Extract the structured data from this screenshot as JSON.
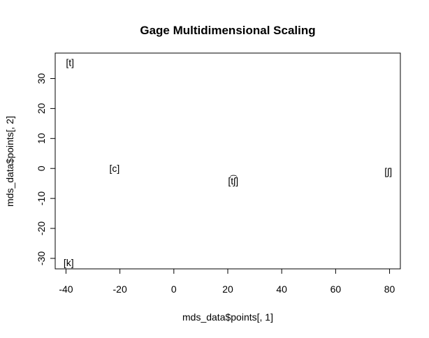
{
  "chart_data": {
    "type": "scatter",
    "title": "Gage Multidimensional Scaling",
    "xlabel": "mds_data$points[, 1]",
    "ylabel": "mds_data$points[, 2]",
    "xlim": [
      -44,
      84
    ],
    "ylim": [
      -33.5,
      38.5
    ],
    "xticks": [
      -40,
      -20,
      0,
      20,
      40,
      60,
      80
    ],
    "yticks": [
      -30,
      -20,
      -10,
      0,
      10,
      20,
      30
    ],
    "grid": false,
    "points": [
      {
        "label": "[t]",
        "x": -38.5,
        "y": 35.3
      },
      {
        "label": "[c]",
        "x": -22.0,
        "y": 0.1
      },
      {
        "label": "[t͡ʃ]",
        "x": 22.0,
        "y": -4.1
      },
      {
        "label": "[ʃ]",
        "x": 79.5,
        "y": -1.0
      },
      {
        "label": "[k]",
        "x": -39.0,
        "y": -31.4
      }
    ]
  }
}
